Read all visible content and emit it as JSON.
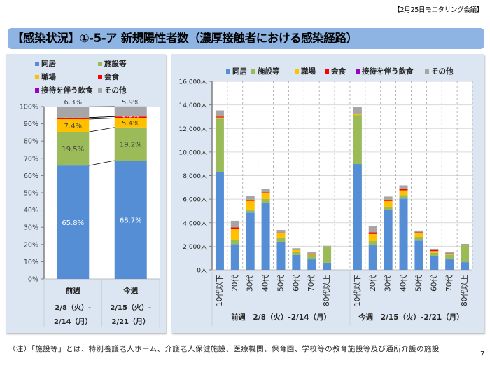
{
  "meeting_label": "【2月25日モニタリング会議】",
  "title": "【感染状況】①-5-ア 新規陽性者数（濃厚接触者における感染経路）",
  "footnote": "（注）「施設等」とは、特別養護老人ホーム、介護老人保健施設、医療機関、保育園、学校等の教育施設等及び通所介護の施設",
  "page_number": "7",
  "legend": [
    {
      "label": "同居",
      "color": "#558ed5"
    },
    {
      "label": "施設等",
      "color": "#9bbb59"
    },
    {
      "label": "職場",
      "color": "#ffc000"
    },
    {
      "label": "会食",
      "color": "#ff0000"
    },
    {
      "label": "接待を伴う飲食",
      "color": "#9900cc"
    },
    {
      "label": "その他",
      "color": "#a6a6a6"
    }
  ],
  "chart_data": [
    {
      "type": "bar",
      "stacked": "percent",
      "title": "",
      "xlabel": "",
      "ylabel": "",
      "categories": [
        "前週",
        "今週"
      ],
      "category_dates": [
        [
          "2/8（火）-",
          "2/14（月）"
        ],
        [
          "2/15（火）-",
          "2/21（月）"
        ]
      ],
      "series": [
        {
          "name": "同居",
          "values": [
            65.8,
            68.7
          ]
        },
        {
          "name": "施設等",
          "values": [
            19.5,
            19.2
          ]
        },
        {
          "name": "職場",
          "values": [
            7.4,
            5.4
          ]
        },
        {
          "name": "会食",
          "values": [
            0.9,
            0.9
          ]
        },
        {
          "name": "接待を伴う飲食",
          "values": [
            0.0,
            0.0
          ]
        },
        {
          "name": "その他",
          "values": [
            6.3,
            5.9
          ]
        }
      ],
      "ylim": [
        0,
        100
      ],
      "yticks": [
        0,
        10,
        20,
        30,
        40,
        50,
        60,
        70,
        80,
        90,
        100
      ],
      "ytick_labels": [
        "0%",
        "10%",
        "20%",
        "30%",
        "40%",
        "50%",
        "60%",
        "70%",
        "80%",
        "90%",
        "100%"
      ],
      "series_lines": true,
      "legend_position": "top",
      "grid": false
    },
    {
      "type": "bar",
      "stacked": true,
      "title": "",
      "xlabel": "",
      "ylabel": "",
      "categories": [
        "10代以下",
        "20代",
        "30代",
        "40代",
        "50代",
        "60代",
        "70代",
        "80代以上"
      ],
      "groups": [
        {
          "label": "前週　2/8（火）-2/14（月）",
          "series": [
            {
              "name": "同居",
              "values": [
                8300,
                2180,
                4860,
                5690,
                2380,
                1250,
                890,
                600
              ]
            },
            {
              "name": "施設等",
              "values": [
                4530,
                380,
                260,
                320,
                360,
                240,
                360,
                1380
              ]
            },
            {
              "name": "職場",
              "values": [
                100,
                910,
                730,
                480,
                410,
                200,
                40,
                0
              ]
            },
            {
              "name": "会食",
              "values": [
                80,
                140,
                60,
                80,
                20,
                20,
                80,
                0
              ]
            },
            {
              "name": "接待を伴う飲食",
              "values": [
                0,
                0,
                0,
                0,
                0,
                0,
                0,
                0
              ]
            },
            {
              "name": "その他",
              "values": [
                520,
                560,
                380,
                320,
                220,
                120,
                120,
                60
              ]
            }
          ]
        },
        {
          "label": "今週　2/15（火）-2/21（月）",
          "series": [
            {
              "name": "同居",
              "values": [
                8980,
                2080,
                5080,
                6050,
                2480,
                1190,
                890,
                650
              ]
            },
            {
              "name": "施設等",
              "values": [
                4160,
                360,
                280,
                300,
                320,
                260,
                400,
                1430
              ]
            },
            {
              "name": "職場",
              "values": [
                100,
                600,
                480,
                400,
                300,
                140,
                40,
                60
              ]
            },
            {
              "name": "会食",
              "values": [
                0,
                140,
                80,
                100,
                80,
                80,
                60,
                0
              ]
            },
            {
              "name": "接待を伴う飲食",
              "values": [
                0,
                0,
                0,
                0,
                0,
                0,
                0,
                0
              ]
            },
            {
              "name": "その他",
              "values": [
                600,
                540,
                300,
                320,
                160,
                120,
                100,
                60
              ]
            }
          ]
        }
      ],
      "ylim": [
        0,
        16000
      ],
      "yticks": [
        0,
        2000,
        4000,
        6000,
        8000,
        10000,
        12000,
        14000,
        16000
      ],
      "ytick_labels": [
        "0人",
        "2,000人",
        "4,000人",
        "6,000人",
        "8,000人",
        "10,000人",
        "12,000人",
        "14,000人",
        "16,000人"
      ],
      "legend_position": "top",
      "grid": true
    }
  ]
}
